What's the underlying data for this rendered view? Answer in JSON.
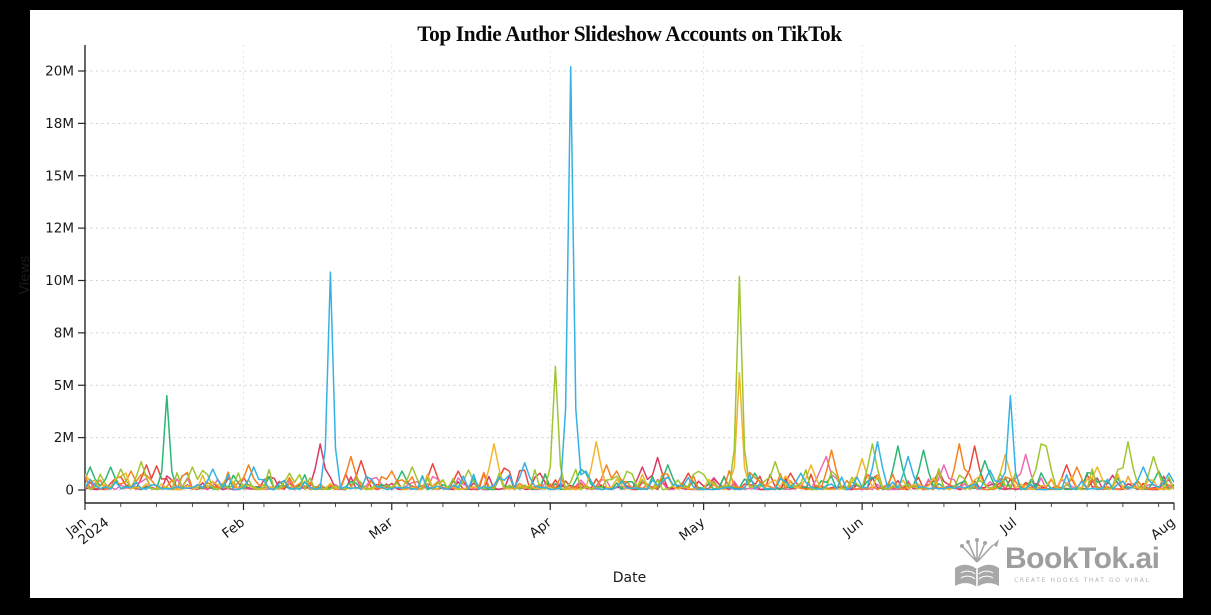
{
  "frame": {
    "background": "#000000",
    "card_background": "#ffffff"
  },
  "title": "Top Indie Author Slideshow Accounts on TikTok",
  "axes": {
    "x_label": "Date",
    "y_label": "Views"
  },
  "branding": {
    "name": "BookTok.ai",
    "tagline": "CREATE HOOKS THAT GO VIRAL",
    "color": "#9e9e9e",
    "icon": "open-book-with-sparkles-and-growth-arrow"
  },
  "chart_data": {
    "type": "line",
    "title": "Top Indie Author Slideshow Accounts on TikTok",
    "xlabel": "Date",
    "ylabel": "Views",
    "legend": false,
    "grid": true,
    "x_start": "2024-01-01",
    "x_end": "2024-08-01",
    "minor_tick_interval_days": 7,
    "x_ticks": [
      {
        "label": "Jan",
        "sublabel": "2024",
        "date": "2024-01-01"
      },
      {
        "label": "Feb",
        "date": "2024-02-01"
      },
      {
        "label": "Mar",
        "date": "2024-03-01"
      },
      {
        "label": "Apr",
        "date": "2024-04-01"
      },
      {
        "label": "May",
        "date": "2024-05-01"
      },
      {
        "label": "Jun",
        "date": "2024-06-01"
      },
      {
        "label": "Jul",
        "date": "2024-07-01"
      },
      {
        "label": "Aug",
        "date": "2024-08-01"
      }
    ],
    "y_ticks": [
      {
        "label": "0",
        "value": 0
      },
      {
        "label": "2M",
        "value": 2.5
      },
      {
        "label": "5M",
        "value": 5
      },
      {
        "label": "8M",
        "value": 7.5
      },
      {
        "label": "10M",
        "value": 10
      },
      {
        "label": "12M",
        "value": 12.5
      },
      {
        "label": "15M",
        "value": 15
      },
      {
        "label": "18M",
        "value": 17.5
      },
      {
        "label": "20M",
        "value": 20
      }
    ],
    "ylim_M": [
      0,
      21
    ],
    "units": "millions of views per day",
    "series": [
      {
        "name": "series-red",
        "color": "#e8493a",
        "baseline_views_M": 0.6,
        "peaks": [
          {
            "date": "2024-01-13",
            "views_M": 1.2
          },
          {
            "date": "2024-01-15",
            "views_M": 1.15
          },
          {
            "date": "2024-02-24",
            "views_M": 1.4
          },
          {
            "date": "2024-03-09",
            "views_M": 1.25
          },
          {
            "date": "2024-03-14",
            "views_M": 0.9
          },
          {
            "date": "2024-03-23",
            "views_M": 1.05
          },
          {
            "date": "2024-04-28",
            "views_M": 0.8
          },
          {
            "date": "2024-05-18",
            "views_M": 0.8
          },
          {
            "date": "2024-06-23",
            "views_M": 2.1
          },
          {
            "date": "2024-07-11",
            "views_M": 1.2
          }
        ]
      },
      {
        "name": "series-pink",
        "color": "#ee6bb3",
        "baseline_views_M": 0.4,
        "peaks": [
          {
            "date": "2024-02-27",
            "views_M": 0.6
          },
          {
            "date": "2024-05-03",
            "views_M": 0.6
          },
          {
            "date": "2024-05-24",
            "views_M": 1.05
          },
          {
            "date": "2024-05-25",
            "views_M": 1.6
          },
          {
            "date": "2024-06-17",
            "views_M": 1.2
          },
          {
            "date": "2024-07-03",
            "views_M": 1.7
          }
        ]
      },
      {
        "name": "series-crimson",
        "color": "#d93a63",
        "baseline_views_M": 0.45,
        "peaks": [
          {
            "date": "2024-02-16",
            "views_M": 2.2
          },
          {
            "date": "2024-03-30",
            "views_M": 0.8
          },
          {
            "date": "2024-04-19",
            "views_M": 1.1
          },
          {
            "date": "2024-04-22",
            "views_M": 1.55
          },
          {
            "date": "2024-06-16",
            "views_M": 0.9
          },
          {
            "date": "2024-07-20",
            "views_M": 0.7
          }
        ]
      },
      {
        "name": "series-green",
        "color": "#2bb673",
        "baseline_views_M": 0.6,
        "peaks": [
          {
            "date": "2024-01-02",
            "views_M": 1.1
          },
          {
            "date": "2024-01-06",
            "views_M": 1.1
          },
          {
            "date": "2024-01-17",
            "views_M": 4.5
          },
          {
            "date": "2024-03-03",
            "views_M": 0.9
          },
          {
            "date": "2024-04-07",
            "views_M": 1.0
          },
          {
            "date": "2024-04-24",
            "views_M": 1.2
          },
          {
            "date": "2024-05-11",
            "views_M": 0.8
          },
          {
            "date": "2024-06-08",
            "views_M": 2.1
          },
          {
            "date": "2024-06-13",
            "views_M": 1.9
          },
          {
            "date": "2024-06-25",
            "views_M": 1.4
          },
          {
            "date": "2024-07-16",
            "views_M": 0.8
          },
          {
            "date": "2024-07-29",
            "views_M": 0.9
          }
        ]
      },
      {
        "name": "series-orange",
        "color": "#f58220",
        "baseline_views_M": 0.65,
        "peaks": [
          {
            "date": "2024-01-10",
            "views_M": 0.9
          },
          {
            "date": "2024-02-02",
            "views_M": 1.2
          },
          {
            "date": "2024-02-22",
            "views_M": 1.6
          },
          {
            "date": "2024-03-01",
            "views_M": 0.9
          },
          {
            "date": "2024-04-12",
            "views_M": 1.2
          },
          {
            "date": "2024-04-14",
            "views_M": 0.9
          },
          {
            "date": "2024-05-26",
            "views_M": 1.9
          },
          {
            "date": "2024-06-20",
            "views_M": 2.2
          },
          {
            "date": "2024-07-13",
            "views_M": 1.1
          }
        ]
      },
      {
        "name": "series-amber",
        "color": "#f3b529",
        "baseline_views_M": 0.55,
        "peaks": [
          {
            "date": "2024-01-29",
            "views_M": 0.7
          },
          {
            "date": "2024-03-21",
            "views_M": 2.2
          },
          {
            "date": "2024-04-10",
            "views_M": 2.3
          },
          {
            "date": "2024-05-08",
            "views_M": 5.6
          },
          {
            "date": "2024-05-22",
            "views_M": 1.2
          },
          {
            "date": "2024-06-01",
            "views_M": 1.5
          },
          {
            "date": "2024-06-29",
            "views_M": 1.7
          },
          {
            "date": "2024-07-17",
            "views_M": 1.1
          }
        ]
      },
      {
        "name": "series-olive",
        "color": "#9fc531",
        "baseline_views_M": 0.7,
        "peaks": [
          {
            "date": "2024-01-08",
            "views_M": 1.0
          },
          {
            "date": "2024-01-12",
            "views_M": 1.35
          },
          {
            "date": "2024-01-22",
            "views_M": 1.1
          },
          {
            "date": "2024-02-10",
            "views_M": 0.8
          },
          {
            "date": "2024-03-05",
            "views_M": 1.1
          },
          {
            "date": "2024-03-16",
            "views_M": 0.95
          },
          {
            "date": "2024-04-02",
            "views_M": 5.9
          },
          {
            "date": "2024-05-01",
            "views_M": 0.75
          },
          {
            "date": "2024-05-08",
            "views_M": 10.2
          },
          {
            "date": "2024-05-15",
            "views_M": 1.35
          },
          {
            "date": "2024-06-03",
            "views_M": 2.2
          },
          {
            "date": "2024-07-06",
            "views_M": 2.2
          },
          {
            "date": "2024-07-07",
            "views_M": 2.1
          },
          {
            "date": "2024-07-23",
            "views_M": 2.3
          },
          {
            "date": "2024-07-28",
            "views_M": 1.6
          }
        ]
      },
      {
        "name": "series-cyan",
        "color": "#35b2e5",
        "baseline_views_M": 0.55,
        "peaks": [
          {
            "date": "2024-01-26",
            "views_M": 1.0
          },
          {
            "date": "2024-02-03",
            "views_M": 1.1
          },
          {
            "date": "2024-02-18",
            "views_M": 10.4
          },
          {
            "date": "2024-03-27",
            "views_M": 1.3
          },
          {
            "date": "2024-04-05",
            "views_M": 20.2
          },
          {
            "date": "2024-04-08",
            "views_M": 0.9
          },
          {
            "date": "2024-05-20",
            "views_M": 0.8
          },
          {
            "date": "2024-06-04",
            "views_M": 2.3
          },
          {
            "date": "2024-06-10",
            "views_M": 1.6
          },
          {
            "date": "2024-06-26",
            "views_M": 0.95
          },
          {
            "date": "2024-06-30",
            "views_M": 4.5
          },
          {
            "date": "2024-07-26",
            "views_M": 1.1
          },
          {
            "date": "2024-07-31",
            "views_M": 0.8
          }
        ]
      }
    ]
  }
}
